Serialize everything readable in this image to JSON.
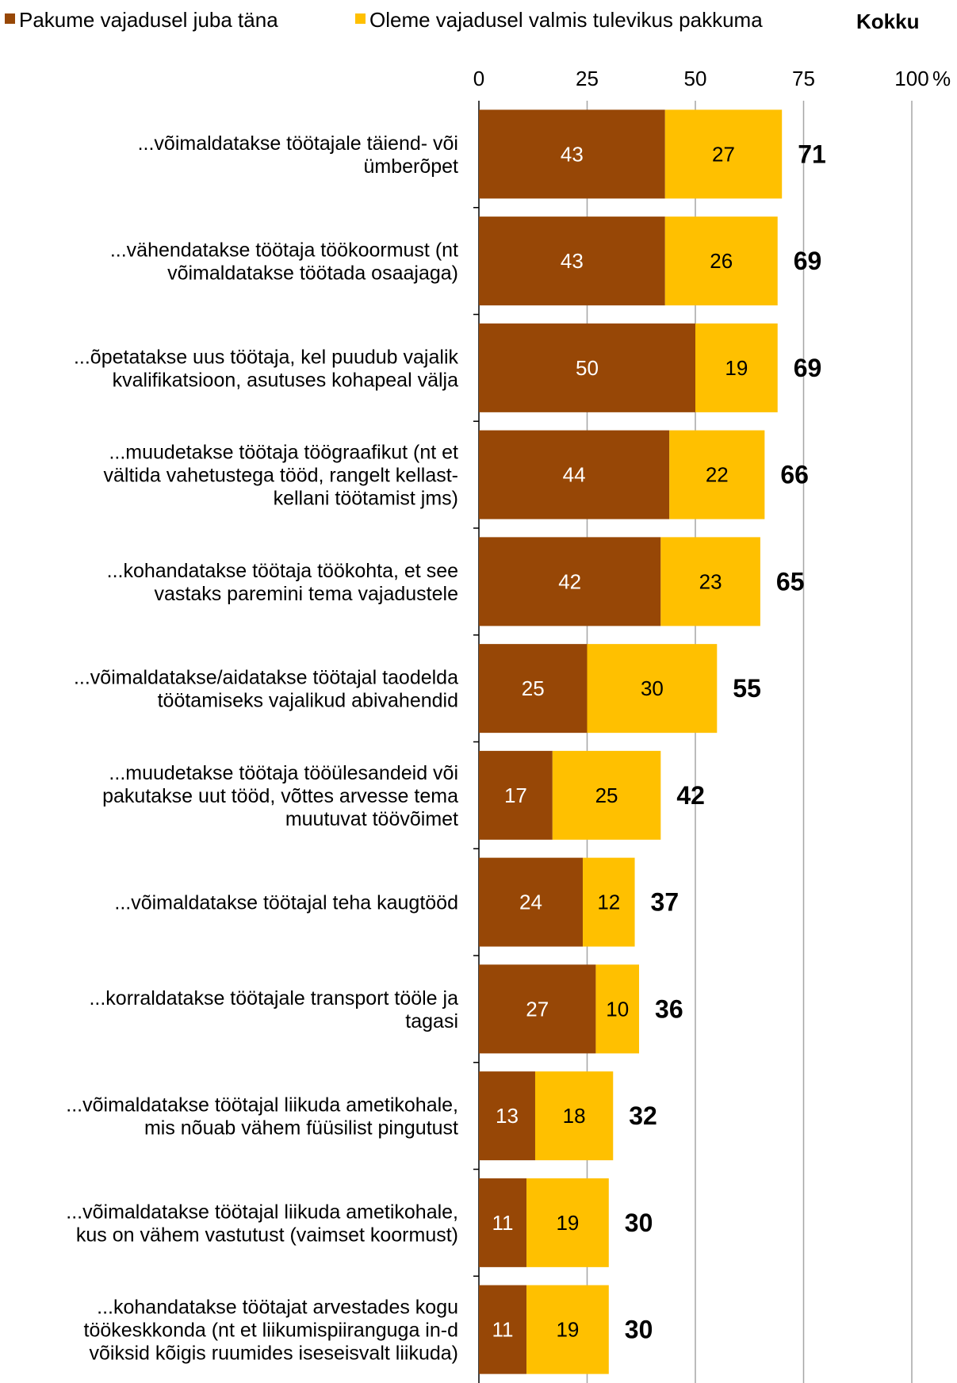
{
  "chart_data": {
    "type": "bar",
    "orientation": "horizontal",
    "stacked": true,
    "xlim": [
      0,
      100
    ],
    "x_ticks": [
      "0",
      "25",
      "50",
      "75",
      "100"
    ],
    "x_unit": "%",
    "grid": true,
    "legend_position": "top",
    "total_header": "Kokku",
    "categories": [
      [
        "...võimaldatakse töötajale täiend- või",
        "ümberõpet"
      ],
      [
        "...vähendatakse töötaja töökoormust (nt",
        "võimaldatakse töötada osaajaga)"
      ],
      [
        "...õpetatakse uus töötaja, kel puudub vajalik",
        "kvalifikatsioon, asutuses kohapeal välja"
      ],
      [
        "...muudetakse töötaja töögraafikut (nt et",
        "vältida vahetustega tööd, rangelt kellast-",
        "kellani töötamist jms)"
      ],
      [
        "...kohandatakse töötaja töökohta, et see",
        "vastaks paremini tema vajadustele"
      ],
      [
        "...võimaldatakse/aidatakse töötajal taodelda",
        "töötamiseks vajalikud abivahendid"
      ],
      [
        "...muudetakse töötaja tööülesandeid või",
        "pakutakse uut tööd, võttes arvesse tema",
        "muutuvat töövõimet"
      ],
      [
        "...võimaldatakse töötajal teha kaugtööd"
      ],
      [
        "...korraldatakse töötajale transport tööle ja",
        "tagasi"
      ],
      [
        "...võimaldatakse töötajal liikuda ametikohale,",
        "mis nõuab vähem füüsilist pingutust"
      ],
      [
        "...võimaldatakse töötajal liikuda ametikohale,",
        "kus on vähem vastutust (vaimset koormust)"
      ],
      [
        "...kohandatakse töötajat arvestades kogu",
        "töökeskkonda (nt et liikumispiiranguga in-d",
        "võiksid kõigis ruumides iseseisvalt liikuda)"
      ]
    ],
    "series": [
      {
        "name": "Pakume vajadusel juba täna",
        "color": "#974706",
        "label_color": "#ffffff",
        "values": [
          43,
          43,
          50,
          44,
          42,
          25,
          17,
          24,
          27,
          13,
          11,
          11
        ]
      },
      {
        "name": "Oleme vajadusel valmis tulevikus pakkuma",
        "color": "#FFC000",
        "label_color": "#000000",
        "values": [
          27,
          26,
          19,
          22,
          23,
          30,
          25,
          12,
          10,
          18,
          19,
          19
        ]
      }
    ],
    "totals": [
      71,
      69,
      69,
      66,
      65,
      55,
      42,
      37,
      36,
      32,
      30,
      30
    ]
  }
}
